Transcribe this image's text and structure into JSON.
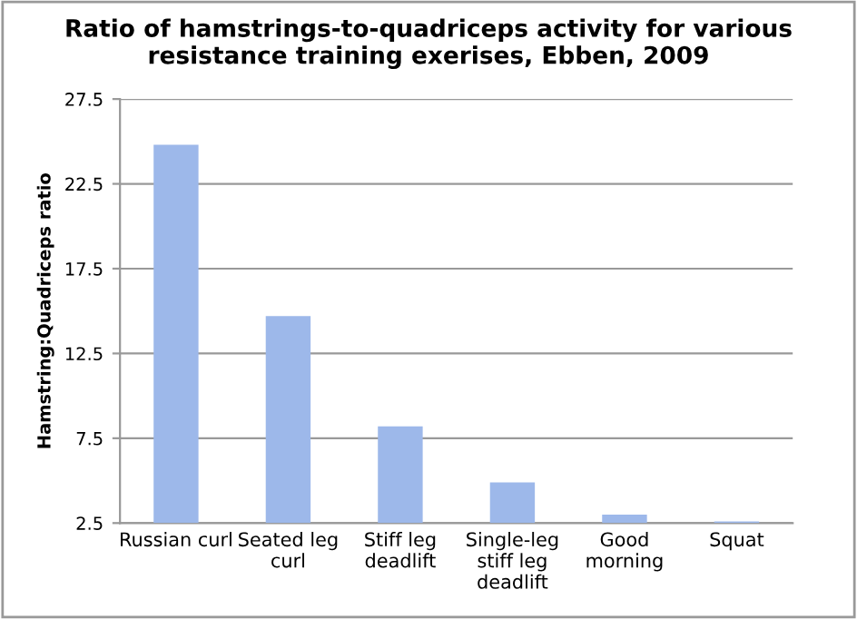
{
  "chart_data": {
    "type": "bar",
    "title": "Ratio of hamstrings-to-quadriceps activity for various\nresistance training exerises, Ebben, 2009",
    "ylabel": "Hamstring:Quadriceps ratio",
    "categories": [
      "Russian curl",
      "Seated leg\ncurl",
      "Stiff leg\ndeadlift",
      "Single-leg\nstiff leg\ndeadlift",
      "Good\nmorning",
      "Squat"
    ],
    "values": [
      24.8,
      14.7,
      8.2,
      4.9,
      3.0,
      2.6
    ],
    "color": "#9db8ea",
    "ylim": [
      2.5,
      27.5
    ],
    "yticks": [
      2.5,
      7.5,
      12.5,
      17.5,
      22.5,
      27.5
    ],
    "grid": "y",
    "legend": false
  }
}
